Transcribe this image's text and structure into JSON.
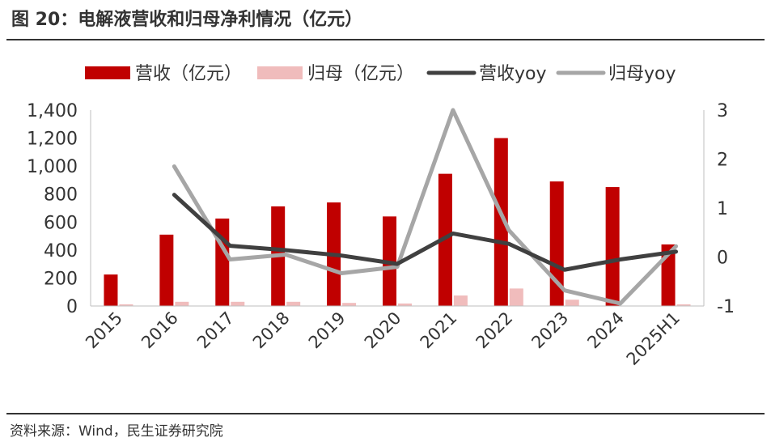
{
  "figure": {
    "title": "图 20：电解液营收和归母净利情况（亿元）",
    "source": "资料来源：Wind，民生证券研究院"
  },
  "chart_data": {
    "type": "bar+line",
    "title": "电解液营收和归母净利情况（亿元）",
    "categories": [
      "2015",
      "2016",
      "2017",
      "2018",
      "2019",
      "2020",
      "2021",
      "2022",
      "2023",
      "2024",
      "2025H1"
    ],
    "series": [
      {
        "name": "营收（亿元）",
        "type": "bar",
        "axis": "left",
        "color": "#c00000",
        "values": [
          225,
          510,
          625,
          712,
          740,
          640,
          945,
          1200,
          890,
          850,
          440
        ]
      },
      {
        "name": "归母（亿元）",
        "type": "bar",
        "axis": "left",
        "color": "#f0bcbc",
        "values": [
          12,
          30,
          30,
          30,
          22,
          18,
          75,
          125,
          45,
          0,
          12
        ]
      },
      {
        "name": "营收yoy",
        "type": "line",
        "axis": "right",
        "color": "#404040",
        "values": [
          null,
          1.27,
          0.23,
          0.14,
          0.03,
          -0.14,
          0.48,
          0.27,
          -0.26,
          -0.05,
          0.11
        ]
      },
      {
        "name": "归母yoy",
        "type": "line",
        "axis": "right",
        "color": "#a6a6a6",
        "values": [
          null,
          1.85,
          -0.05,
          0.05,
          -0.33,
          -0.2,
          3.0,
          0.55,
          -0.68,
          -0.95,
          0.22
        ]
      }
    ],
    "left_axis": {
      "min": 0,
      "max": 1400,
      "ticks": [
        0,
        200,
        400,
        600,
        800,
        1000,
        1200,
        1400
      ],
      "tick_labels": [
        "0",
        "200",
        "400",
        "600",
        "800",
        "1,000",
        "1,200",
        "1,400"
      ]
    },
    "right_axis": {
      "min": -1,
      "max": 3,
      "ticks": [
        -1,
        0,
        1,
        2,
        3
      ],
      "tick_labels": [
        "-1",
        "0",
        "1",
        "2",
        "3"
      ]
    },
    "legend": {
      "position": "top",
      "entries": [
        "营收（亿元）",
        "归母（亿元）",
        "营收yoy",
        "归母yoy"
      ]
    },
    "grid": false
  }
}
